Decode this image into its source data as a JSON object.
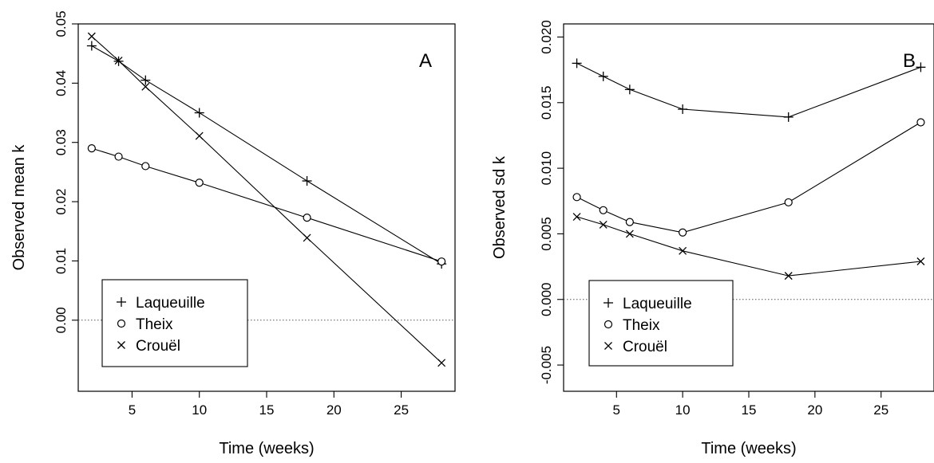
{
  "chart_data": [
    {
      "type": "line",
      "panel_label": "A",
      "xlabel": "Time (weeks)",
      "ylabel": "Observed mean k",
      "xlim": [
        1,
        29
      ],
      "ylim": [
        -0.012,
        0.05
      ],
      "xticks": [
        5,
        10,
        15,
        20,
        25
      ],
      "yticks": [
        0.0,
        0.01,
        0.02,
        0.03,
        0.04,
        0.05
      ],
      "ytick_labels": [
        "0.00",
        "0.01",
        "0.02",
        "0.03",
        "0.04",
        "0.05"
      ],
      "reference_line": 0,
      "legend": "bottom-left",
      "x": [
        2,
        4,
        6,
        10,
        18,
        28
      ],
      "series": [
        {
          "name": "Laqueuille",
          "marker": "+",
          "x": [
            2,
            4,
            6,
            10,
            18,
            28
          ],
          "values": [
            0.0463,
            0.0437,
            0.0405,
            0.035,
            0.0235,
            0.0095
          ]
        },
        {
          "name": "Theix",
          "marker": "o",
          "x": [
            2,
            4,
            6,
            10,
            28,
            18
          ],
          "values": [
            0.029,
            0.0276,
            0.026,
            0.0232,
            0.0099,
            0.0173
          ]
        },
        {
          "name": "Crouël",
          "marker": "x",
          "x": [
            2,
            4,
            6,
            10,
            18,
            28
          ],
          "values": [
            0.0479,
            0.0438,
            0.0394,
            0.0311,
            0.0139,
            -0.0072
          ]
        }
      ]
    },
    {
      "type": "line",
      "panel_label": "B",
      "xlabel": "Time (weeks)",
      "ylabel": "Observed sd k",
      "xlim": [
        1,
        29
      ],
      "ylim": [
        -0.007,
        0.021
      ],
      "xticks": [
        5,
        10,
        15,
        20,
        25
      ],
      "yticks": [
        -0.005,
        0.0,
        0.005,
        0.01,
        0.015,
        0.02
      ],
      "ytick_labels": [
        "-0.005",
        "0.000",
        "0.005",
        "0.010",
        "0.015",
        "0.020"
      ],
      "reference_line": 0,
      "legend": "bottom-left",
      "x": [
        2,
        4,
        6,
        10,
        18,
        28
      ],
      "series": [
        {
          "name": "Laqueuille",
          "marker": "+",
          "x": [
            2,
            4,
            6,
            10,
            18,
            28
          ],
          "values": [
            0.018,
            0.017,
            0.016,
            0.0145,
            0.0139,
            0.0177
          ]
        },
        {
          "name": "Theix",
          "marker": "o",
          "x": [
            2,
            4,
            6,
            10,
            18,
            28
          ],
          "values": [
            0.0078,
            0.0068,
            0.0059,
            0.0051,
            0.0074,
            0.0135
          ]
        },
        {
          "name": "Crouël",
          "marker": "x",
          "x": [
            2,
            4,
            6,
            10,
            18,
            28
          ],
          "values": [
            0.0063,
            0.0057,
            0.005,
            0.0037,
            0.0018,
            0.0029
          ]
        }
      ]
    }
  ]
}
